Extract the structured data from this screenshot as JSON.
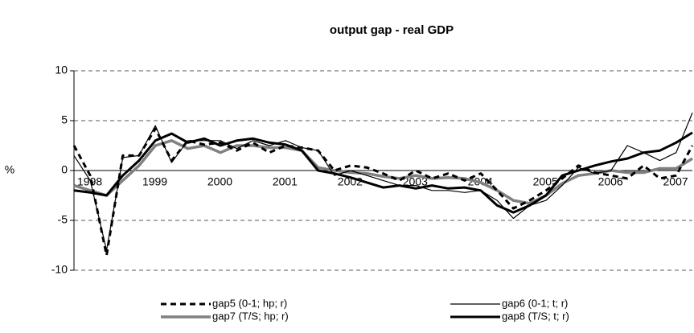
{
  "chart_data": {
    "type": "line",
    "title": "output gap - real GDP",
    "y_label": "%",
    "categories": [
      "1998",
      null,
      null,
      null,
      "1999",
      null,
      null,
      null,
      "2000",
      null,
      null,
      null,
      "2001",
      null,
      null,
      null,
      "2002",
      null,
      null,
      null,
      "2003",
      null,
      null,
      null,
      "2004",
      null,
      null,
      null,
      "2005",
      null,
      null,
      null,
      "2006",
      null,
      null,
      null,
      "2007",
      null,
      null
    ],
    "series": [
      {
        "name": "gap5 (0-1; hp; r)",
        "color": "#000000",
        "values": [
          2.5,
          -0.5,
          -8.5,
          1.5,
          1.5,
          4.2,
          1.0,
          3.0,
          2.6,
          2.8,
          2.0,
          2.8,
          1.8,
          2.5,
          2.3,
          2.0,
          0.0,
          0.5,
          0.3,
          -0.3,
          -1.0,
          0.0,
          -0.8,
          -0.3,
          -1.0,
          -0.3,
          -2.0,
          -3.8,
          -3.0,
          -2.0,
          -0.8,
          0.5,
          -0.2,
          -0.5,
          -0.8,
          0.5,
          -0.8,
          -0.5,
          2.5
        ]
      },
      {
        "name": "gap6 (0-1; t; r)",
        "color": "#000000",
        "values": [
          1.5,
          -1.0,
          -8.0,
          1.3,
          1.5,
          4.5,
          0.8,
          3.0,
          3.0,
          3.0,
          2.2,
          3.0,
          2.5,
          3.0,
          2.3,
          2.0,
          -0.5,
          0.0,
          -0.5,
          -1.0,
          -1.5,
          -1.5,
          -2.0,
          -2.0,
          -2.2,
          -2.0,
          -3.0,
          -4.8,
          -3.5,
          -3.0,
          -1.5,
          0.3,
          -0.3,
          0.0,
          2.5,
          1.8,
          1.0,
          1.8,
          5.8
        ]
      },
      {
        "name": "gap7 (T/S; hp; r)",
        "color": "#808080",
        "values": [
          -1.5,
          -2.0,
          -2.5,
          -1.0,
          0.5,
          2.5,
          3.0,
          2.2,
          2.5,
          1.8,
          2.5,
          2.5,
          2.3,
          2.3,
          2.0,
          0.3,
          0.0,
          -0.2,
          -0.3,
          -0.6,
          -0.8,
          -0.5,
          -0.8,
          -0.7,
          -0.8,
          -1.2,
          -2.0,
          -3.0,
          -3.3,
          -2.5,
          -1.3,
          -0.5,
          -0.3,
          0.0,
          -0.2,
          -0.2,
          0.2,
          0.2,
          1.2
        ]
      },
      {
        "name": "gap8 (T/S; t; r)",
        "color": "#000000",
        "values": [
          -2.0,
          -2.2,
          -2.5,
          -0.5,
          1.0,
          3.0,
          3.7,
          2.8,
          3.2,
          2.5,
          3.0,
          3.2,
          2.8,
          2.6,
          2.0,
          0.0,
          -0.3,
          -0.7,
          -1.2,
          -1.7,
          -1.5,
          -1.8,
          -1.5,
          -1.8,
          -1.7,
          -2.0,
          -3.5,
          -4.2,
          -3.5,
          -2.5,
          -0.5,
          0.0,
          0.5,
          0.9,
          1.2,
          1.8,
          2.0,
          2.8,
          3.8
        ]
      }
    ],
    "ylim": [
      -10,
      10
    ],
    "yticks": [
      -10,
      -5,
      0,
      5,
      10
    ],
    "grid": true
  }
}
